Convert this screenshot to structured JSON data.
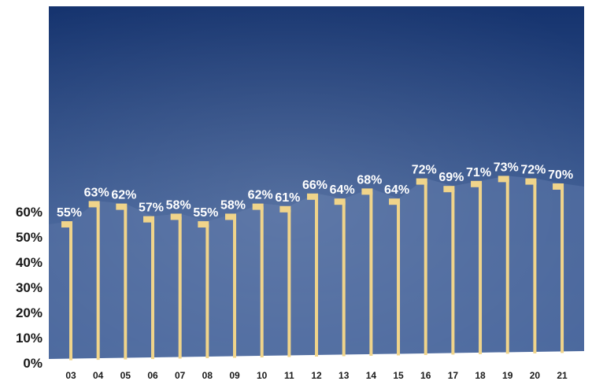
{
  "colors": {
    "background_dark": "#15336e",
    "background_light": "#5b7aae",
    "area_fill": "#4a679c",
    "bar": "#f0d48a",
    "label_text": "#ffffff",
    "axis_text": "#1a1a1a"
  },
  "chart_data": {
    "type": "bar",
    "title": "",
    "xlabel": "",
    "ylabel": "",
    "ylim": [
      0,
      70
    ],
    "yticks": [
      "0%",
      "10%",
      "20%",
      "30%",
      "40%",
      "50%",
      "60%"
    ],
    "grid": false,
    "categories": [
      "03",
      "04",
      "05",
      "06",
      "07",
      "08",
      "09",
      "10",
      "11",
      "12",
      "13",
      "14",
      "15",
      "16",
      "17",
      "18",
      "19",
      "20",
      "21"
    ],
    "values": [
      55,
      63,
      62,
      57,
      58,
      55,
      58,
      62,
      61,
      66,
      64,
      68,
      64,
      72,
      69,
      71,
      73,
      72,
      70
    ],
    "value_labels": [
      "55%",
      "63%",
      "62%",
      "57%",
      "58%",
      "55%",
      "58%",
      "62%",
      "61%",
      "66%",
      "64%",
      "68%",
      "64%",
      "72%",
      "69%",
      "71%",
      "73%",
      "72%",
      "70%"
    ]
  }
}
